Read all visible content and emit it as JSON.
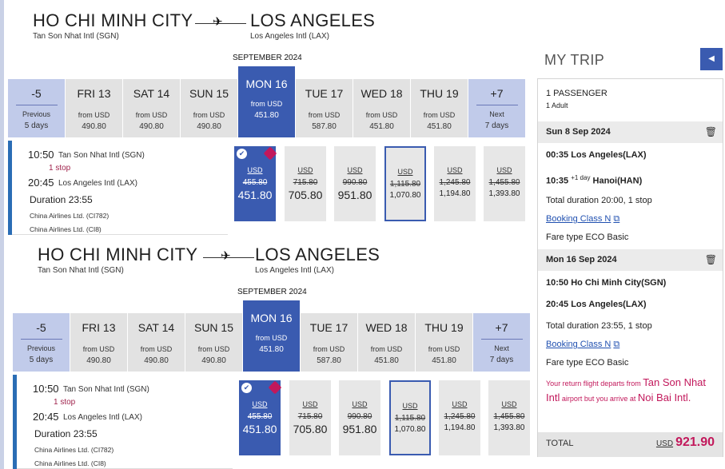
{
  "route": {
    "from_city": "HO CHI MINH CITY",
    "to_city": "LOS ANGELES",
    "from_airport": "Tan Son Nhat Intl (SGN)",
    "to_airport": "Los Angeles Intl (LAX)",
    "month": "SEPTEMBER 2024"
  },
  "dates": [
    {
      "label": "-5",
      "sub1": "Previous",
      "sub2": "5 days",
      "type": "nav"
    },
    {
      "label": "FRI 13",
      "from": "from USD",
      "price": "490.80"
    },
    {
      "label": "SAT 14",
      "from": "from USD",
      "price": "490.80"
    },
    {
      "label": "SUN 15",
      "from": "from USD",
      "price": "490.80"
    },
    {
      "label": "MON 16",
      "from": "from USD",
      "price": "451.80",
      "selected": true
    },
    {
      "label": "TUE 17",
      "from": "from USD",
      "price": "587.80"
    },
    {
      "label": "WED 18",
      "from": "from USD",
      "price": "451.80"
    },
    {
      "label": "THU 19",
      "from": "from USD",
      "price": "451.80"
    },
    {
      "label": "+7",
      "sub1": "Next",
      "sub2": "7 days",
      "type": "nav"
    }
  ],
  "flight": {
    "dep_time": "10:50",
    "dep_airport": "Tan Son Nhat Intl (SGN)",
    "stops": "1 stop",
    "arr_time": "20:45",
    "arr_airport": "Los Angeles Intl (LAX)",
    "duration": "Duration 23:55",
    "carrier1": "China Airlines Ltd. (CI782)",
    "carrier2": "China Airlines Ltd. (CI8)"
  },
  "fares": [
    {
      "cur": "USD",
      "old": "455.80",
      "new": "451.80",
      "state": "selected"
    },
    {
      "cur": "USD",
      "old": "715.80",
      "new": "705.80"
    },
    {
      "cur": "USD",
      "old": "990.80",
      "new": "951.80"
    },
    {
      "cur": "USD",
      "old": "1,115.80",
      "new": "1,070.80",
      "state": "outlined"
    },
    {
      "cur": "USD",
      "old": "1,245.80",
      "new": "1,194.80"
    },
    {
      "cur": "USD",
      "old": "1,455.80",
      "new": "1,393.80"
    }
  ],
  "trip": {
    "title": "MY TRIP",
    "passengers": "1 PASSENGER",
    "adults": "1 Adult",
    "seg1": {
      "date": "Sun 8 Sep 2024",
      "dep": "00:35 Los Angeles(LAX)",
      "arr_time": "10:35",
      "arr_day": "+1 day",
      "arr_place": "Hanoi(HAN)",
      "total": "Total duration 20:00, 1 stop",
      "booking": "Booking Class N",
      "fare": "Fare type ECO Basic"
    },
    "seg2": {
      "date": "Mon 16 Sep 2024",
      "dep": "10:50 Ho Chi Minh City(SGN)",
      "arr": "20:45 Los Angeles(LAX)",
      "total": "Total duration 23:55, 1 stop",
      "booking": "Booking Class N",
      "fare": "Fare type ECO Basic"
    },
    "warning_a": "Your return flight departs from",
    "warning_b": "Tan Son Nhat Intl",
    "warning_c": "airport but you arrive at",
    "warning_d": "Noi Bai Intl",
    "warning_e": ".",
    "total_label": "TOTAL",
    "total_cur": "USD",
    "total_value": "921.90"
  },
  "colors": {
    "accent": "#3a5bb0",
    "alert": "#c2185b",
    "nav": "#c1cbea"
  }
}
